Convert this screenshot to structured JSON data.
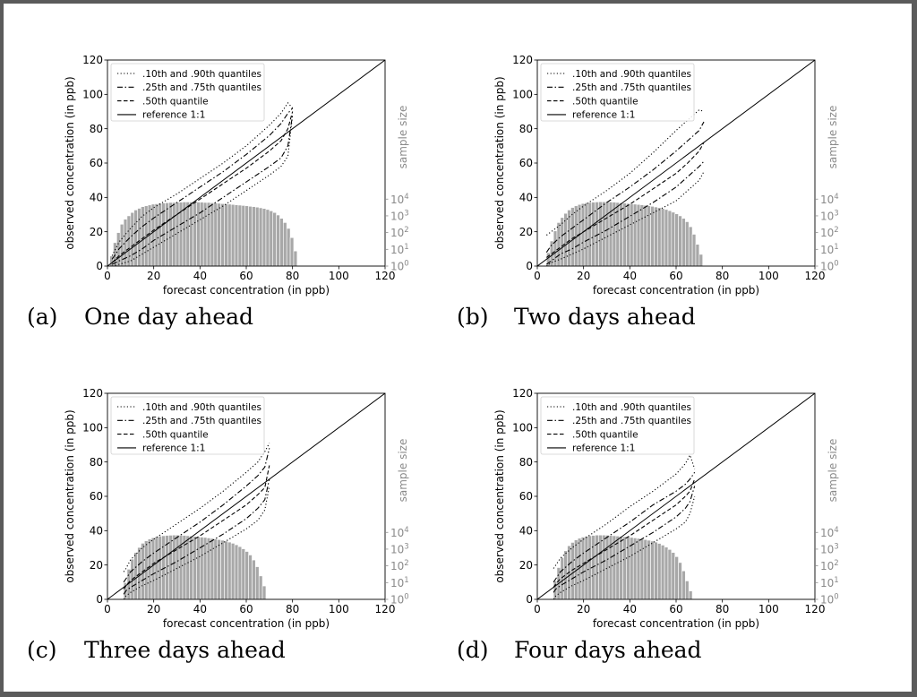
{
  "panels": [
    {
      "id": "a",
      "caption_letter": "(a)",
      "caption": "One day ahead",
      "chart_data": {
        "type": "line",
        "xlabel": "forecast concentration (in ppb)",
        "ylabel": "observed concentration (in ppb)",
        "y2label": "sample size",
        "xlim": [
          0,
          120
        ],
        "ylim": [
          0,
          120
        ],
        "xticks": [
          "0",
          "20",
          "40",
          "60",
          "80",
          "100",
          "120"
        ],
        "yticks": [
          "0",
          "20",
          "40",
          "60",
          "80",
          "100",
          "120"
        ],
        "y2ticks": [
          "10^0",
          "10^1",
          "10^2",
          "10^3",
          "10^4"
        ],
        "legend": ".10th and .90th quantiles|.25th and .75th quantiles|.50th quantile|reference 1:1",
        "legend_position": "upper-left",
        "series": [
          {
            "name": ".10th and .90th quantiles",
            "style": "dotted",
            "x": [
              2,
              5,
              10,
              15,
              20,
              30,
              40,
              50,
              60,
              70,
              75,
              78,
              80
            ],
            "lower": [
              0,
              1,
              3,
              7,
              11,
              19,
              27,
              35,
              44,
              53,
              58,
              64,
              88
            ],
            "upper": [
              6,
              14,
              22,
              29,
              34,
              42,
              51,
              60,
              70,
              82,
              89,
              95,
              92
            ]
          },
          {
            "name": ".25th and .75th quantiles",
            "style": "dashdot",
            "x": [
              2,
              5,
              10,
              15,
              20,
              30,
              40,
              50,
              60,
              70,
              75,
              78,
              80
            ],
            "lower": [
              1,
              3,
              6,
              10,
              15,
              23,
              31,
              40,
              49,
              58,
              63,
              70,
              88
            ],
            "upper": [
              4,
              10,
              17,
              23,
              28,
              37,
              46,
              55,
              65,
              76,
              83,
              89,
              92
            ]
          },
          {
            "name": ".50th quantile",
            "style": "dashed",
            "x": [
              2,
              5,
              10,
              15,
              20,
              30,
              40,
              50,
              60,
              70,
              75,
              78,
              80
            ],
            "y": [
              2,
              6,
              11,
              16,
              21,
              30,
              39,
              48,
              57,
              67,
              73,
              80,
              90
            ]
          },
          {
            "name": "reference 1:1",
            "style": "solid",
            "x": [
              0,
              120
            ],
            "y": [
              0,
              120
            ]
          }
        ],
        "histogram": {
          "x_start": 1,
          "bin_width": 1.5,
          "log10_counts": [
            0.6,
            1.4,
            2.0,
            2.5,
            2.8,
            3.0,
            3.2,
            3.35,
            3.45,
            3.55,
            3.6,
            3.65,
            3.7,
            3.72,
            3.75,
            3.77,
            3.78,
            3.8,
            3.8,
            3.82,
            3.82,
            3.83,
            3.83,
            3.83,
            3.83,
            3.82,
            3.82,
            3.8,
            3.8,
            3.78,
            3.77,
            3.75,
            3.73,
            3.72,
            3.7,
            3.68,
            3.66,
            3.64,
            3.62,
            3.6,
            3.57,
            3.55,
            3.52,
            3.48,
            3.44,
            3.38,
            3.3,
            3.2,
            3.05,
            2.85,
            2.6,
            2.25,
            1.7,
            0.9
          ]
        }
      }
    },
    {
      "id": "b",
      "caption_letter": "(b)",
      "caption": "Two days ahead",
      "chart_data": {
        "type": "line",
        "xlabel": "forecast concentration (in ppb)",
        "ylabel": "observed concentration (in ppb)",
        "y2label": "sample size",
        "xlim": [
          0,
          120
        ],
        "ylim": [
          0,
          120
        ],
        "xticks": [
          "0",
          "20",
          "40",
          "60",
          "80",
          "100",
          "120"
        ],
        "yticks": [
          "0",
          "20",
          "40",
          "60",
          "80",
          "100",
          "120"
        ],
        "y2ticks": [
          "10^0",
          "10^1",
          "10^2",
          "10^3",
          "10^4"
        ],
        "legend": ".10th and .90th quantiles|.25th and .75th quantiles|.50th quantile|reference 1:1",
        "legend_position": "upper-left",
        "series": [
          {
            "name": ".10th and .90th quantiles",
            "style": "dotted",
            "x": [
              4,
              6,
              10,
              15,
              20,
              30,
              40,
              50,
              60,
              65,
              70,
              72
            ],
            "lower": [
              0,
              2,
              4,
              7,
              10,
              17,
              24,
              31,
              38,
              44,
              50,
              55
            ],
            "upper": [
              18,
              20,
              24,
              30,
              35,
              44,
              54,
              66,
              79,
              85,
              91,
              90
            ]
          },
          {
            "name": ".25th and .75th quantiles",
            "style": "dashdot",
            "x": [
              4,
              6,
              10,
              15,
              20,
              30,
              40,
              50,
              60,
              65,
              70,
              72
            ],
            "lower": [
              1,
              3,
              7,
              10,
              14,
              21,
              29,
              37,
              46,
              52,
              58,
              61
            ],
            "upper": [
              8,
              12,
              17,
              22,
              27,
              37,
              46,
              56,
              67,
              73,
              79,
              84
            ]
          },
          {
            "name": ".50th quantile",
            "style": "dashed",
            "x": [
              4,
              6,
              10,
              15,
              20,
              30,
              40,
              50,
              60,
              65,
              70,
              72
            ],
            "y": [
              5,
              7,
              11,
              16,
              20,
              28,
              36,
              45,
              54,
              60,
              67,
              72
            ]
          },
          {
            "name": "reference 1:1",
            "style": "solid",
            "x": [
              0,
              120
            ],
            "y": [
              0,
              120
            ]
          }
        ],
        "histogram": {
          "x_start": 4,
          "bin_width": 1.5,
          "log10_counts": [
            0.8,
            1.5,
            2.1,
            2.6,
            2.9,
            3.15,
            3.35,
            3.5,
            3.6,
            3.68,
            3.74,
            3.78,
            3.8,
            3.82,
            3.83,
            3.84,
            3.84,
            3.84,
            3.83,
            3.82,
            3.8,
            3.78,
            3.76,
            3.74,
            3.72,
            3.7,
            3.68,
            3.66,
            3.63,
            3.6,
            3.57,
            3.53,
            3.49,
            3.44,
            3.38,
            3.31,
            3.22,
            3.12,
            3.0,
            2.85,
            2.65,
            2.35,
            1.9,
            1.3,
            0.7
          ]
        }
      }
    },
    {
      "id": "c",
      "caption_letter": "(c)",
      "caption": "Three days ahead",
      "chart_data": {
        "type": "line",
        "xlabel": "forecast concentration (in ppb)",
        "ylabel": "observed concentration (in ppb)",
        "y2label": "sample size",
        "xlim": [
          0,
          120
        ],
        "ylim": [
          0,
          120
        ],
        "xticks": [
          "0",
          "20",
          "40",
          "60",
          "80",
          "100",
          "120"
        ],
        "yticks": [
          "0",
          "20",
          "40",
          "60",
          "80",
          "100",
          "120"
        ],
        "y2ticks": [
          "10^0",
          "10^1",
          "10^2",
          "10^3",
          "10^4"
        ],
        "legend": ".10th and .90th quantiles|.25th and .75th quantiles|.50th quantile|reference 1:1",
        "legend_position": "upper-left",
        "series": [
          {
            "name": ".10th and .90th quantiles",
            "style": "dotted",
            "x": [
              7,
              8,
              10,
              15,
              20,
              30,
              40,
              50,
              60,
              65,
              68,
              70
            ],
            "lower": [
              0,
              2,
              4,
              8,
              11,
              18,
              25,
              33,
              41,
              46,
              52,
              66
            ],
            "upper": [
              16,
              18,
              23,
              30,
              35,
              44,
              53,
              63,
              74,
              80,
              86,
              91
            ]
          },
          {
            "name": ".25th and .75th quantiles",
            "style": "dashdot",
            "x": [
              7,
              8,
              10,
              15,
              20,
              30,
              40,
              50,
              60,
              65,
              68,
              70
            ],
            "lower": [
              3,
              5,
              7,
              11,
              15,
              22,
              30,
              38,
              47,
              53,
              58,
              70
            ],
            "upper": [
              10,
              12,
              16,
              22,
              27,
              36,
              45,
              55,
              66,
              72,
              77,
              88
            ]
          },
          {
            "name": ".50th quantile",
            "style": "dashed",
            "x": [
              7,
              8,
              10,
              15,
              20,
              30,
              40,
              50,
              60,
              65,
              68,
              70
            ],
            "y": [
              6,
              8,
              11,
              16,
              21,
              29,
              37,
              46,
              55,
              61,
              65,
              78
            ]
          },
          {
            "name": "reference 1:1",
            "style": "solid",
            "x": [
              0,
              120
            ],
            "y": [
              0,
              120
            ]
          }
        ],
        "histogram": {
          "x_start": 7,
          "bin_width": 1.5,
          "log10_counts": [
            1.0,
            1.8,
            2.4,
            2.8,
            3.1,
            3.35,
            3.5,
            3.6,
            3.68,
            3.74,
            3.78,
            3.8,
            3.82,
            3.83,
            3.84,
            3.84,
            3.83,
            3.82,
            3.8,
            3.78,
            3.76,
            3.74,
            3.72,
            3.7,
            3.67,
            3.64,
            3.61,
            3.57,
            3.53,
            3.48,
            3.42,
            3.35,
            3.26,
            3.15,
            3.02,
            2.86,
            2.65,
            2.35,
            1.95,
            1.4,
            0.8
          ]
        }
      }
    },
    {
      "id": "d",
      "caption_letter": "(d)",
      "caption": "Four days ahead",
      "chart_data": {
        "type": "line",
        "xlabel": "forecast concentration (in ppb)",
        "ylabel": "observed concentration (in ppb)",
        "y2label": "sample size",
        "xlim": [
          0,
          120
        ],
        "ylim": [
          0,
          120
        ],
        "xticks": [
          "0",
          "20",
          "40",
          "60",
          "80",
          "100",
          "120"
        ],
        "yticks": [
          "0",
          "20",
          "40",
          "60",
          "80",
          "100",
          "120"
        ],
        "y2ticks": [
          "10^0",
          "10^1",
          "10^2",
          "10^3",
          "10^4"
        ],
        "legend": ".10th and .90th quantiles|.25th and .75th quantiles|.50th quantile|reference 1:1",
        "legend_position": "upper-left",
        "series": [
          {
            "name": ".10th and .90th quantiles",
            "style": "dotted",
            "x": [
              7,
              8,
              10,
              15,
              20,
              30,
              40,
              50,
              60,
              64,
              66,
              68
            ],
            "lower": [
              0,
              2,
              4,
              8,
              11,
              18,
              25,
              33,
              41,
              45,
              50,
              60
            ],
            "upper": [
              18,
              20,
              24,
              30,
              35,
              44,
              54,
              63,
              73,
              79,
              84,
              76
            ]
          },
          {
            "name": ".25th and .75th quantiles",
            "style": "dashdot",
            "x": [
              7,
              8,
              10,
              15,
              20,
              30,
              40,
              50,
              60,
              64,
              66,
              68
            ],
            "lower": [
              4,
              6,
              8,
              12,
              16,
              23,
              31,
              39,
              48,
              53,
              57,
              66
            ],
            "upper": [
              10,
              12,
              16,
              22,
              27,
              36,
              45,
              55,
              63,
              67,
              70,
              74
            ]
          },
          {
            "name": ".50th quantile",
            "style": "dashed",
            "x": [
              7,
              8,
              10,
              15,
              20,
              30,
              40,
              50,
              60,
              64,
              66,
              68
            ],
            "y": [
              7,
              9,
              12,
              17,
              21,
              29,
              37,
              46,
              55,
              60,
              63,
              70
            ]
          },
          {
            "name": "reference 1:1",
            "style": "solid",
            "x": [
              0,
              120
            ],
            "y": [
              0,
              120
            ]
          }
        ],
        "histogram": {
          "x_start": 7,
          "bin_width": 1.5,
          "log10_counts": [
            1.1,
            1.9,
            2.5,
            2.9,
            3.2,
            3.4,
            3.55,
            3.65,
            3.72,
            3.77,
            3.8,
            3.82,
            3.84,
            3.84,
            3.84,
            3.83,
            3.82,
            3.8,
            3.78,
            3.76,
            3.74,
            3.72,
            3.7,
            3.67,
            3.64,
            3.61,
            3.57,
            3.53,
            3.48,
            3.42,
            3.34,
            3.24,
            3.12,
            2.98,
            2.8,
            2.55,
            2.2,
            1.7,
            1.1,
            0.5
          ]
        }
      }
    }
  ],
  "colors": {
    "histogram": "#a8a8a8",
    "histogram_edge": "#ffffff",
    "line": "#000000",
    "right_axis": "#8a8a8a"
  }
}
